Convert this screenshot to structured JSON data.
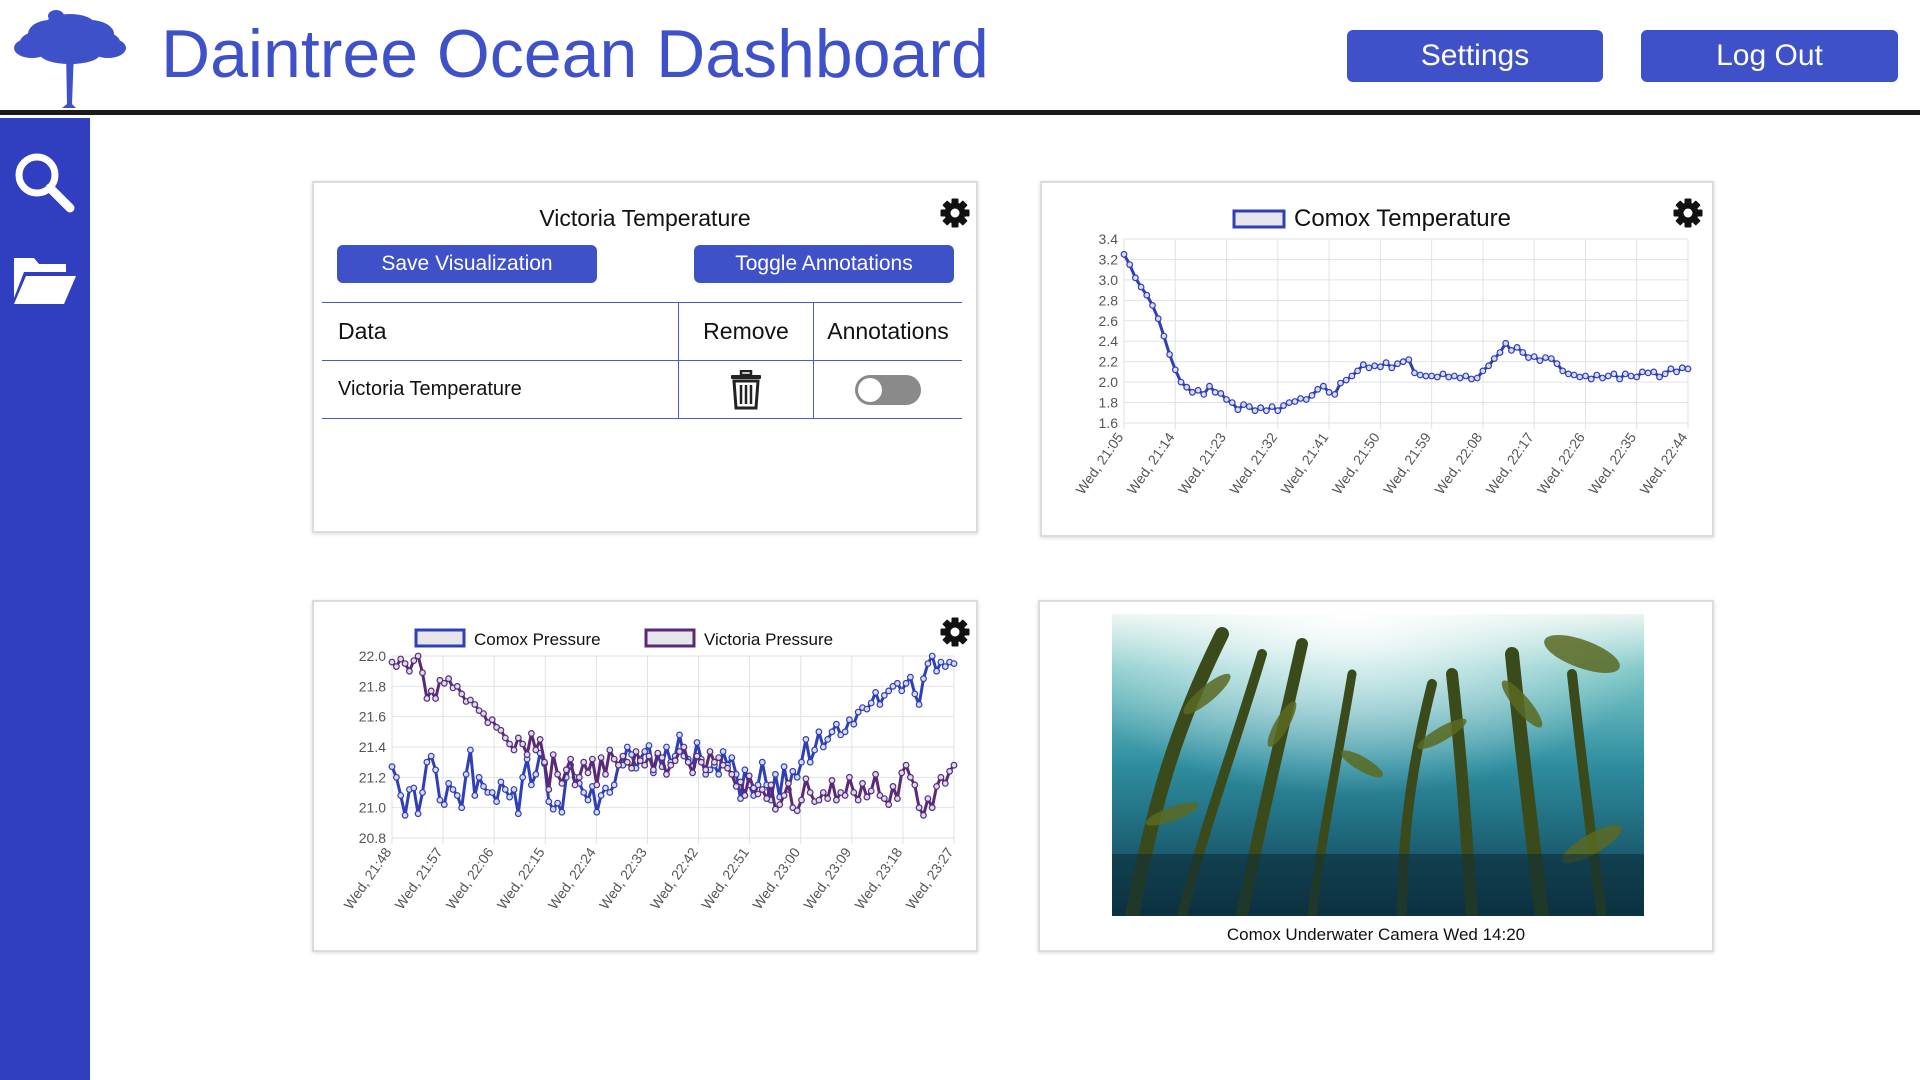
{
  "header": {
    "title": "Daintree Ocean Dashboard",
    "settings_label": "Settings",
    "logout_label": "Log Out"
  },
  "sidebar": {
    "items": [
      {
        "icon": "search-icon"
      },
      {
        "icon": "folder-icon"
      }
    ]
  },
  "colors": {
    "accent": "#3f51c8",
    "sidebar": "#2f3fc0",
    "comox_series": "#2f3fb8",
    "victoria_series": "#5a2a78"
  },
  "victoria_panel": {
    "title": "Victoria Temperature",
    "save_label": "Save Visualization",
    "toggle_label": "Toggle Annotations",
    "table": {
      "headers": [
        "Data",
        "Remove",
        "Annotations"
      ],
      "rows": [
        {
          "data": "Victoria Temperature",
          "annotations_on": false
        }
      ]
    }
  },
  "camera": {
    "caption": "Comox Underwater Camera Wed 14:20"
  },
  "chart_data": [
    {
      "type": "line",
      "title": "",
      "legend": "top-center",
      "grid": true,
      "ylim": [
        1.6,
        3.4
      ],
      "yticks": [
        "3.4",
        "3.2",
        "3.0",
        "2.8",
        "2.6",
        "2.4",
        "2.2",
        "2.0",
        "1.8",
        "1.6"
      ],
      "xticks": [
        "Wed, 21:05",
        "Wed, 21:14",
        "Wed, 21:23",
        "Wed, 21:32",
        "Wed, 21:41",
        "Wed, 21:50",
        "Wed, 21:59",
        "Wed, 22:08",
        "Wed, 22:17",
        "Wed, 22:26",
        "Wed, 22:35",
        "Wed, 22:44"
      ],
      "series": [
        {
          "name": "Comox Temperature",
          "values": [
            3.25,
            3.15,
            3.02,
            2.93,
            2.85,
            2.75,
            2.62,
            2.45,
            2.27,
            2.12,
            2.0,
            1.95,
            1.9,
            1.92,
            1.88,
            1.96,
            1.9,
            1.89,
            1.83,
            1.8,
            1.73,
            1.78,
            1.76,
            1.72,
            1.75,
            1.72,
            1.76,
            1.72,
            1.77,
            1.8,
            1.81,
            1.84,
            1.83,
            1.87,
            1.93,
            1.96,
            1.9,
            1.88,
            1.99,
            2.02,
            2.06,
            2.11,
            2.17,
            2.14,
            2.16,
            2.15,
            2.19,
            2.14,
            2.18,
            2.2,
            2.22,
            2.09,
            2.07,
            2.06,
            2.06,
            2.05,
            2.08,
            2.05,
            2.06,
            2.04,
            2.06,
            2.03,
            2.04,
            2.11,
            2.16,
            2.23,
            2.29,
            2.38,
            2.31,
            2.34,
            2.29,
            2.24,
            2.25,
            2.21,
            2.24,
            2.23,
            2.18,
            2.11,
            2.08,
            2.07,
            2.05,
            2.06,
            2.03,
            2.07,
            2.04,
            2.06,
            2.08,
            2.03,
            2.08,
            2.06,
            2.05,
            2.1,
            2.09,
            2.1,
            2.05,
            2.08,
            2.13,
            2.1,
            2.14,
            2.13
          ]
        }
      ]
    },
    {
      "type": "line",
      "title": "",
      "legend": "top-center",
      "grid": true,
      "ylim": [
        20.8,
        22.0
      ],
      "yticks": [
        "22.0",
        "21.8",
        "21.6",
        "21.4",
        "21.2",
        "21.0",
        "20.8"
      ],
      "xticks": [
        "Wed, 21:48",
        "Wed, 21:57",
        "Wed, 22:06",
        "Wed, 22:15",
        "Wed, 22:24",
        "Wed, 22:33",
        "Wed, 22:42",
        "Wed, 22:51",
        "Wed, 23:00",
        "Wed, 23:09",
        "Wed, 23:18",
        "Wed, 23:27"
      ],
      "series": [
        {
          "name": "Comox Pressure",
          "values": [
            21.27,
            21.2,
            21.08,
            20.95,
            21.12,
            21.13,
            20.96,
            21.1,
            21.3,
            21.34,
            21.25,
            21.05,
            21.02,
            21.16,
            21.12,
            21.08,
            21.0,
            21.22,
            21.38,
            21.08,
            21.2,
            21.14,
            21.1,
            21.1,
            21.04,
            21.17,
            21.12,
            21.07,
            21.12,
            20.96,
            21.2,
            21.32,
            21.15,
            21.22,
            21.36,
            21.29,
            21.04,
            20.99,
            21.03,
            20.97,
            21.2,
            21.28,
            21.2,
            21.16,
            21.1,
            21.05,
            21.14,
            20.97,
            21.08,
            21.13,
            21.1,
            21.15,
            21.28,
            21.28,
            21.4,
            21.35,
            21.26,
            21.32,
            21.37,
            21.41,
            21.23,
            21.35,
            21.27,
            21.4,
            21.3,
            21.34,
            21.48,
            21.34,
            21.32,
            21.27,
            21.43,
            21.32,
            21.22,
            21.25,
            21.28,
            21.22,
            21.37,
            21.28,
            21.33,
            21.22,
            21.06,
            21.25,
            21.15,
            21.08,
            21.15,
            21.3,
            21.15,
            21.05,
            21.22,
            21.07,
            21.27,
            21.12,
            21.24,
            21.2,
            21.3,
            21.45,
            21.3,
            21.38,
            21.5,
            21.4,
            21.45,
            21.5,
            21.55,
            21.48,
            21.5,
            21.58,
            21.55,
            21.63,
            21.66,
            21.65,
            21.69,
            21.76,
            21.68,
            21.74,
            21.77,
            21.8,
            21.82,
            21.77,
            21.82,
            21.86,
            21.75,
            21.68,
            21.85,
            21.95,
            22.0,
            21.9,
            21.96,
            21.93,
            21.96,
            21.95
          ]
        },
        {
          "name": "Victoria Pressure",
          "values": [
            21.96,
            21.93,
            21.98,
            21.95,
            21.9,
            21.97,
            22.0,
            21.89,
            21.72,
            21.77,
            21.72,
            21.84,
            21.82,
            21.85,
            21.79,
            21.8,
            21.75,
            21.7,
            21.71,
            21.68,
            21.64,
            21.62,
            21.56,
            21.58,
            21.53,
            21.51,
            21.46,
            21.42,
            21.38,
            21.46,
            21.42,
            21.35,
            21.49,
            21.38,
            21.45,
            21.3,
            21.12,
            21.35,
            21.22,
            21.16,
            21.25,
            21.32,
            21.15,
            21.2,
            21.3,
            21.23,
            21.32,
            21.15,
            21.33,
            21.22,
            21.38,
            21.32,
            21.28,
            21.34,
            21.3,
            21.26,
            21.37,
            21.31,
            21.28,
            21.34,
            21.25,
            21.36,
            21.33,
            21.22,
            21.28,
            21.31,
            21.37,
            21.4,
            21.3,
            21.23,
            21.34,
            21.3,
            21.25,
            21.37,
            21.3,
            21.33,
            21.28,
            21.26,
            21.22,
            21.14,
            21.17,
            21.08,
            21.21,
            21.13,
            21.09,
            21.12,
            21.06,
            21.15,
            20.99,
            21.02,
            21.08,
            21.16,
            21.0,
            20.98,
            21.05,
            21.19,
            21.1,
            21.04,
            21.05,
            21.1,
            21.06,
            21.18,
            21.05,
            21.1,
            21.08,
            21.2,
            21.1,
            21.05,
            21.16,
            21.07,
            21.11,
            21.22,
            21.08,
            21.06,
            21.02,
            21.14,
            21.06,
            21.23,
            21.28,
            21.2,
            21.15,
            21.0,
            20.95,
            21.06,
            21.0,
            21.14,
            21.2,
            21.16,
            21.24,
            21.28
          ]
        }
      ]
    }
  ]
}
